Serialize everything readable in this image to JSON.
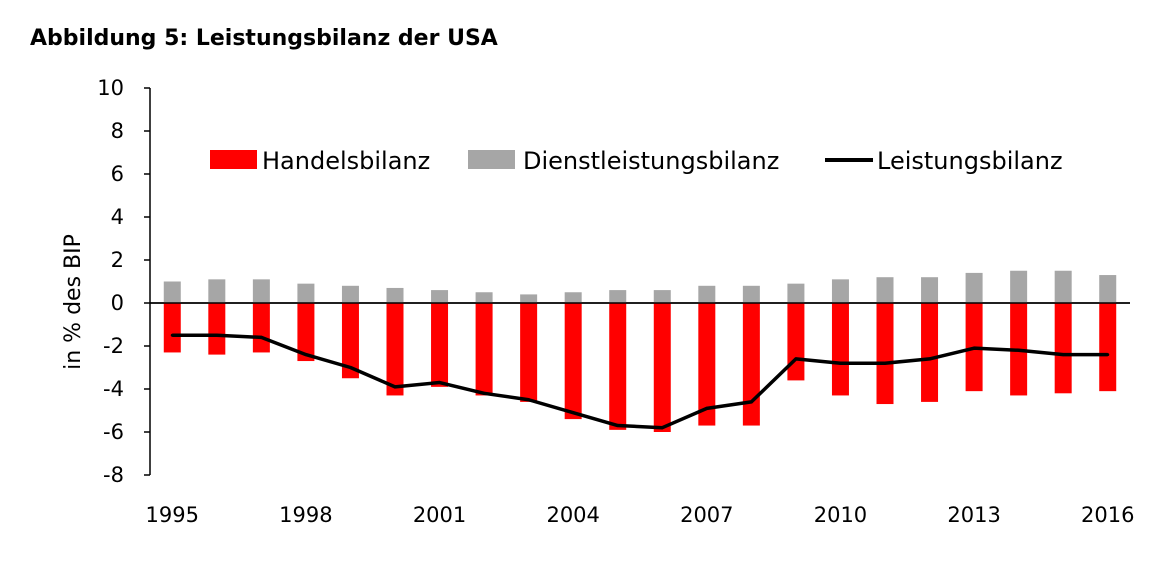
{
  "chart_data": {
    "type": "bar",
    "title": "Abbildung 5: Leistungsbilanz der USA",
    "ylabel": "in % des BIP",
    "xlabel": "",
    "ylim": [
      -8,
      10
    ],
    "yticks": [
      -8,
      -6,
      -4,
      -2,
      0,
      2,
      4,
      6,
      8,
      10
    ],
    "x": [
      1995,
      1996,
      1997,
      1998,
      1999,
      2000,
      2001,
      2002,
      2003,
      2004,
      2005,
      2006,
      2007,
      2008,
      2009,
      2010,
      2011,
      2012,
      2013,
      2014,
      2015,
      2016
    ],
    "xtick_labels": [
      "1995",
      "1998",
      "2001",
      "2004",
      "2007",
      "2010",
      "2013",
      "2016"
    ],
    "legend_position": "top",
    "grid": false,
    "series": [
      {
        "name": "Handelsbilanz",
        "kind": "bar",
        "color": "#ff0000",
        "values": [
          -2.3,
          -2.4,
          -2.3,
          -2.7,
          -3.5,
          -4.3,
          -3.9,
          -4.3,
          -4.6,
          -5.4,
          -5.9,
          -6.0,
          -5.7,
          -5.7,
          -3.6,
          -4.3,
          -4.7,
          -4.6,
          -4.1,
          -4.3,
          -4.2,
          -4.1
        ]
      },
      {
        "name": "Dienstleistungsbilanz",
        "kind": "bar",
        "color": "#a6a6a6",
        "values": [
          1.0,
          1.1,
          1.1,
          0.9,
          0.8,
          0.7,
          0.6,
          0.5,
          0.4,
          0.5,
          0.6,
          0.6,
          0.8,
          0.8,
          0.9,
          1.1,
          1.2,
          1.2,
          1.4,
          1.5,
          1.5,
          1.3
        ]
      },
      {
        "name": "Leistungsbilanz",
        "kind": "line",
        "color": "#000000",
        "values": [
          -1.5,
          -1.5,
          -1.6,
          -2.4,
          -3.0,
          -3.9,
          -3.7,
          -4.2,
          -4.5,
          -5.1,
          -5.7,
          -5.8,
          -4.9,
          -4.6,
          -2.6,
          -2.8,
          -2.8,
          -2.6,
          -2.1,
          -2.2,
          -2.4,
          -2.4
        ]
      }
    ]
  }
}
